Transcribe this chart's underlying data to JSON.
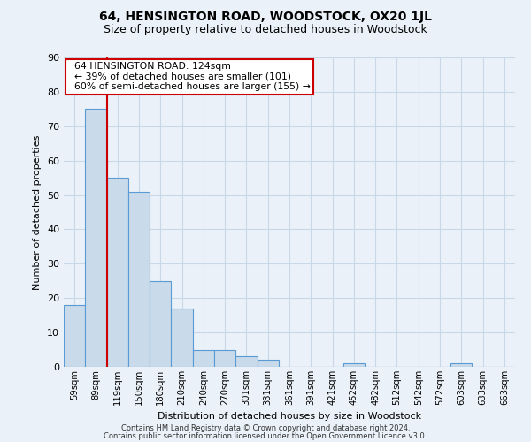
{
  "title": "64, HENSINGTON ROAD, WOODSTOCK, OX20 1JL",
  "subtitle": "Size of property relative to detached houses in Woodstock",
  "xlabel": "Distribution of detached houses by size in Woodstock",
  "ylabel": "Number of detached properties",
  "categories": [
    "59sqm",
    "89sqm",
    "119sqm",
    "150sqm",
    "180sqm",
    "210sqm",
    "240sqm",
    "270sqm",
    "301sqm",
    "331sqm",
    "361sqm",
    "391sqm",
    "421sqm",
    "452sqm",
    "482sqm",
    "512sqm",
    "542sqm",
    "572sqm",
    "603sqm",
    "633sqm",
    "663sqm"
  ],
  "values": [
    18,
    75,
    55,
    51,
    25,
    17,
    5,
    5,
    3,
    2,
    0,
    0,
    0,
    1,
    0,
    0,
    0,
    0,
    1,
    0,
    0
  ],
  "bar_color": "#c9daea",
  "bar_edge_color": "#5b9bd5",
  "red_line_x": 1.5,
  "annotation_text": "  64 HENSINGTON ROAD: 124sqm\n  ← 39% of detached houses are smaller (101)\n  60% of semi-detached houses are larger (155) →",
  "annotation_box_color": "#ffffff",
  "annotation_box_edge_color": "#cc0000",
  "red_line_color": "#cc0000",
  "ylim": [
    0,
    90
  ],
  "yticks": [
    0,
    10,
    20,
    30,
    40,
    50,
    60,
    70,
    80,
    90
  ],
  "grid_color": "#c8d8e8",
  "bg_color": "#eaf1f8",
  "footer_line1": "Contains HM Land Registry data © Crown copyright and database right 2024.",
  "footer_line2": "Contains public sector information licensed under the Open Government Licence v3.0.",
  "title_fontsize": 10,
  "subtitle_fontsize": 9
}
